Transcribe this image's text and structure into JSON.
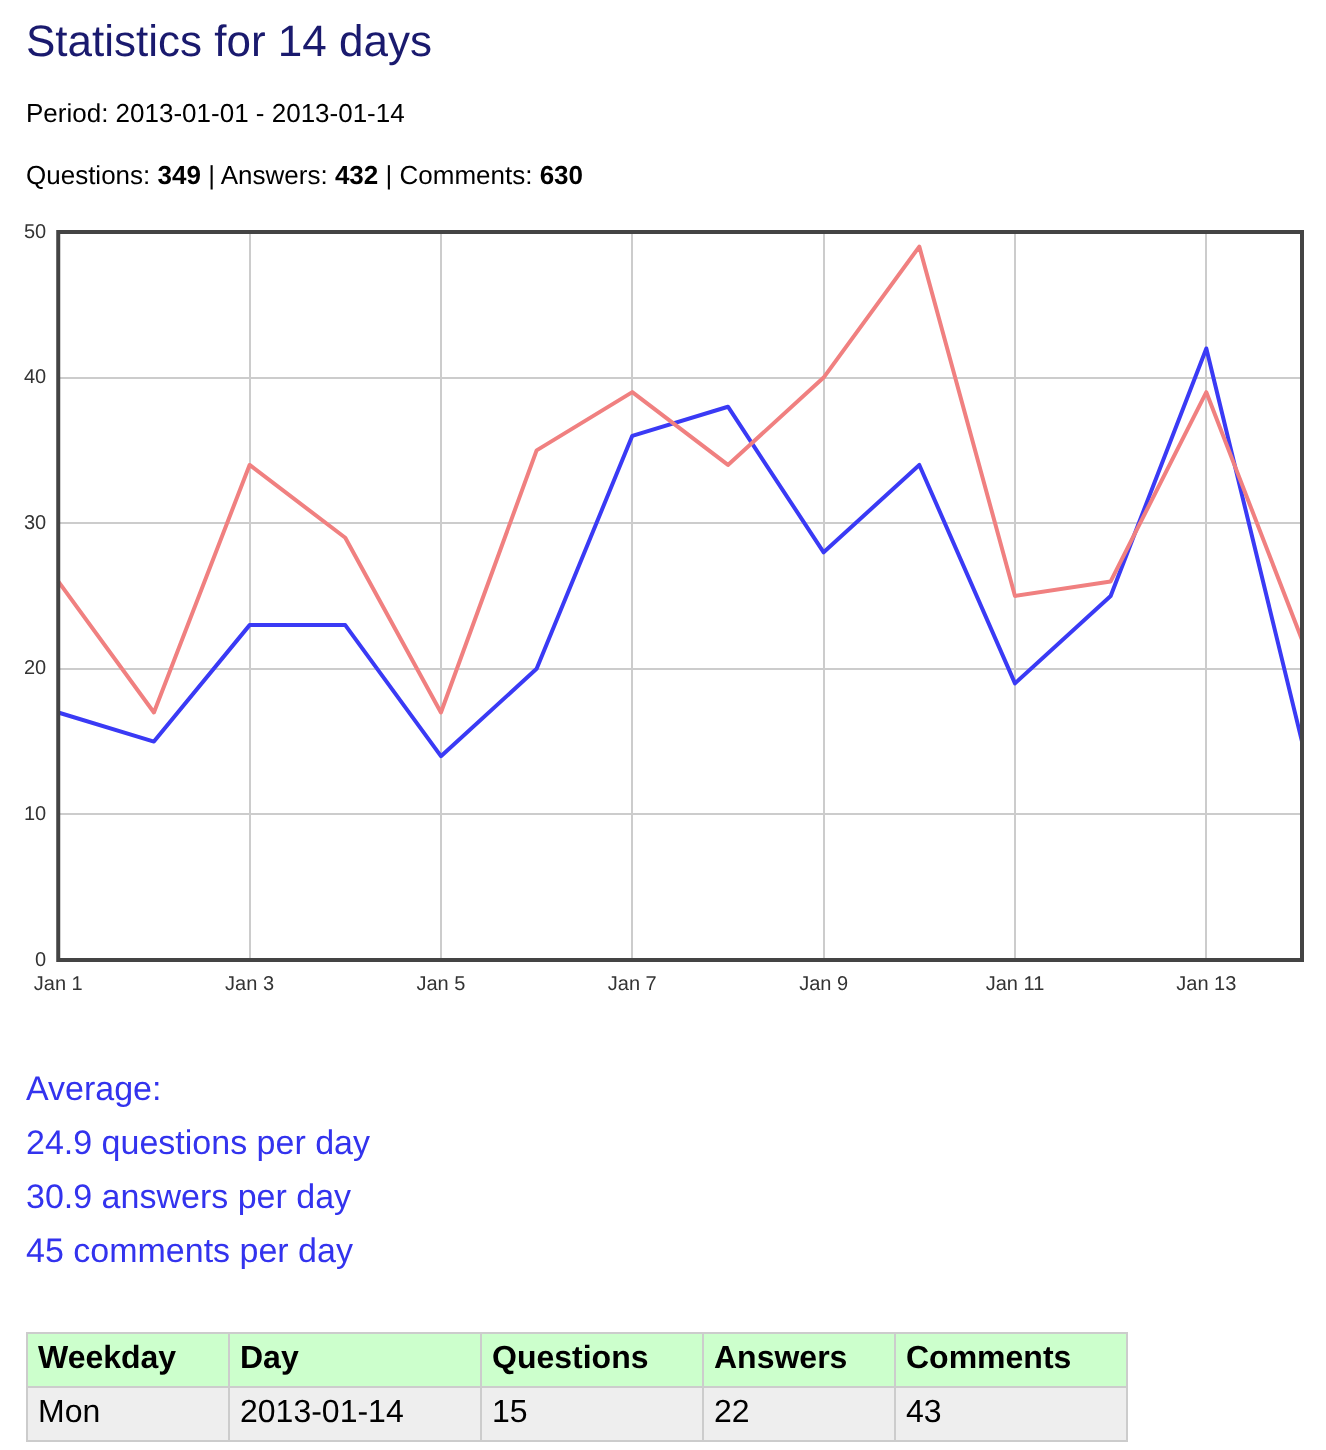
{
  "chart_data": {
    "type": "line",
    "title": "Statistics for 14 days",
    "subtitle": "Period: 2013-01-01 - 2013-01-14",
    "categories": [
      "Jan 1",
      null,
      "Jan 3",
      null,
      "Jan 5",
      null,
      "Jan 7",
      null,
      "Jan 9",
      null,
      "Jan 11",
      null,
      "Jan 13",
      null
    ],
    "series": [
      {
        "color": "#f08080",
        "values": [
          26,
          17,
          34,
          29,
          17,
          35,
          39,
          34,
          40,
          49,
          25,
          26,
          39,
          22
        ]
      },
      {
        "color": "#3a3af5",
        "values": [
          17,
          15,
          23,
          23,
          14,
          20,
          36,
          38,
          28,
          34,
          19,
          25,
          42,
          15
        ]
      }
    ],
    "ylim": [
      0,
      50
    ],
    "yticks": [
      0,
      10,
      20,
      30,
      40,
      50
    ],
    "grid": true,
    "legend": false,
    "marker": "none",
    "line_style": "solid",
    "annotations": [
      "Questions: 349 | Answers: 432 | Comments: 630",
      "Average:",
      "24.9 questions per day",
      "30.9 answers per day",
      "45 comments per day",
      "Weekday",
      "Day",
      "Questions",
      "Answers",
      "Comments",
      "Mon",
      "2013-01-14",
      "15",
      "22",
      "43"
    ]
  }
}
